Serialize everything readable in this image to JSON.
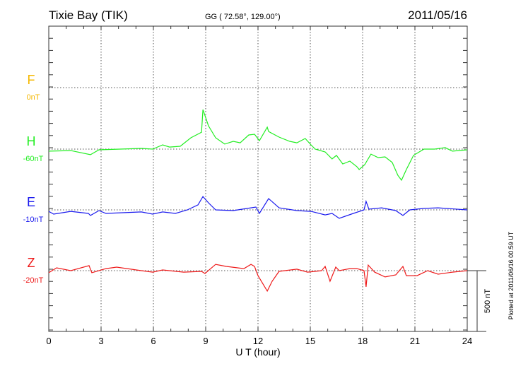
{
  "header": {
    "station": "Tixie Bay (TIK)",
    "coords": "GG ( 72.58°, 129.00°)",
    "date": "2011/05/16"
  },
  "footer": {
    "plotted": "Plotted at 2011/06/16 00:59 UT",
    "scale_label": "500 nT"
  },
  "chart_data": {
    "type": "line",
    "xlabel": "U T (hour)",
    "xlim": [
      0,
      24
    ],
    "xticks": [
      "0",
      "3",
      "6",
      "9",
      "12",
      "15",
      "18",
      "21",
      "24"
    ],
    "scale_nT": 500,
    "grid": true,
    "series": [
      {
        "name": "F",
        "baseline_label": "0nT",
        "color": "#f5b800",
        "points": []
      },
      {
        "name": "H",
        "baseline_label": "-60nT",
        "color": "#22ee22",
        "points": [
          [
            0,
            -17
          ],
          [
            1.26,
            -12
          ],
          [
            2.39,
            -46
          ],
          [
            2.88,
            -6
          ],
          [
            5.31,
            6
          ],
          [
            5.96,
            0
          ],
          [
            6.53,
            35
          ],
          [
            6.93,
            17
          ],
          [
            7.54,
            23
          ],
          [
            8.15,
            93
          ],
          [
            8.76,
            139
          ],
          [
            8.84,
            325
          ],
          [
            9.16,
            192
          ],
          [
            9.57,
            93
          ],
          [
            10.09,
            41
          ],
          [
            10.58,
            64
          ],
          [
            10.98,
            52
          ],
          [
            11.47,
            116
          ],
          [
            11.8,
            122
          ],
          [
            12.08,
            70
          ],
          [
            12.53,
            180
          ],
          [
            12.61,
            145
          ],
          [
            13.21,
            99
          ],
          [
            13.82,
            64
          ],
          [
            14.23,
            52
          ],
          [
            14.71,
            87
          ],
          [
            15.04,
            35
          ],
          [
            15.28,
            0
          ],
          [
            15.85,
            -23
          ],
          [
            16.25,
            -81
          ],
          [
            16.5,
            -52
          ],
          [
            16.86,
            -122
          ],
          [
            17.27,
            -99
          ],
          [
            17.67,
            -145
          ],
          [
            17.8,
            -168
          ],
          [
            18.12,
            -128
          ],
          [
            18.48,
            -41
          ],
          [
            18.89,
            -70
          ],
          [
            19.29,
            -64
          ],
          [
            19.7,
            -110
          ],
          [
            20.02,
            -215
          ],
          [
            20.23,
            -256
          ],
          [
            20.51,
            -168
          ],
          [
            20.92,
            -52
          ],
          [
            21.52,
            0
          ],
          [
            22.13,
            0
          ],
          [
            22.74,
            12
          ],
          [
            23.15,
            -17
          ],
          [
            24,
            -6
          ]
        ]
      },
      {
        "name": "E",
        "baseline_label": "-10nT",
        "color": "#1a1aee",
        "points": [
          [
            0,
            -12
          ],
          [
            0.28,
            -35
          ],
          [
            1.26,
            -12
          ],
          [
            2.27,
            -29
          ],
          [
            2.39,
            -46
          ],
          [
            2.88,
            -6
          ],
          [
            3.28,
            -29
          ],
          [
            5.31,
            -17
          ],
          [
            5.96,
            -35
          ],
          [
            6.53,
            -17
          ],
          [
            7.26,
            -29
          ],
          [
            7.95,
            0
          ],
          [
            8.56,
            41
          ],
          [
            8.84,
            110
          ],
          [
            9.16,
            58
          ],
          [
            9.57,
            0
          ],
          [
            10.58,
            -6
          ],
          [
            11.39,
            12
          ],
          [
            11.88,
            23
          ],
          [
            12.08,
            -29
          ],
          [
            12.61,
            93
          ],
          [
            13.21,
            17
          ],
          [
            14.23,
            -6
          ],
          [
            15.04,
            -12
          ],
          [
            15.85,
            -41
          ],
          [
            16.25,
            -29
          ],
          [
            16.66,
            -70
          ],
          [
            17.47,
            -29
          ],
          [
            18.08,
            0
          ],
          [
            18.2,
            70
          ],
          [
            18.36,
            6
          ],
          [
            19.09,
            17
          ],
          [
            19.9,
            -6
          ],
          [
            20.31,
            -46
          ],
          [
            20.71,
            0
          ],
          [
            21.52,
            12
          ],
          [
            22.33,
            17
          ],
          [
            24,
            0
          ]
        ]
      },
      {
        "name": "Z",
        "baseline_label": "-20nT",
        "color": "#ee1a1a",
        "points": [
          [
            0,
            -17
          ],
          [
            0.45,
            23
          ],
          [
            1.26,
            0
          ],
          [
            2.31,
            41
          ],
          [
            2.47,
            -17
          ],
          [
            3.28,
            17
          ],
          [
            3.89,
            29
          ],
          [
            5.31,
            0
          ],
          [
            5.96,
            -12
          ],
          [
            6.53,
            6
          ],
          [
            7.74,
            -12
          ],
          [
            8.76,
            -6
          ],
          [
            8.96,
            -23
          ],
          [
            9.57,
            52
          ],
          [
            10.18,
            35
          ],
          [
            11.19,
            17
          ],
          [
            11.6,
            52
          ],
          [
            11.8,
            35
          ],
          [
            12.0,
            -41
          ],
          [
            12.53,
            -168
          ],
          [
            12.81,
            -87
          ],
          [
            13.21,
            -6
          ],
          [
            14.23,
            12
          ],
          [
            14.84,
            -12
          ],
          [
            15.65,
            0
          ],
          [
            15.85,
            35
          ],
          [
            16.13,
            -87
          ],
          [
            16.25,
            -46
          ],
          [
            16.46,
            29
          ],
          [
            16.66,
            0
          ],
          [
            17.27,
            17
          ],
          [
            17.67,
            17
          ],
          [
            18.08,
            0
          ],
          [
            18.2,
            -133
          ],
          [
            18.32,
            46
          ],
          [
            18.69,
            -12
          ],
          [
            19.29,
            -52
          ],
          [
            19.9,
            -35
          ],
          [
            20.31,
            35
          ],
          [
            20.51,
            -41
          ],
          [
            21.12,
            -41
          ],
          [
            21.73,
            0
          ],
          [
            22.33,
            -29
          ],
          [
            23.15,
            -12
          ],
          [
            24,
            0
          ]
        ]
      }
    ]
  }
}
